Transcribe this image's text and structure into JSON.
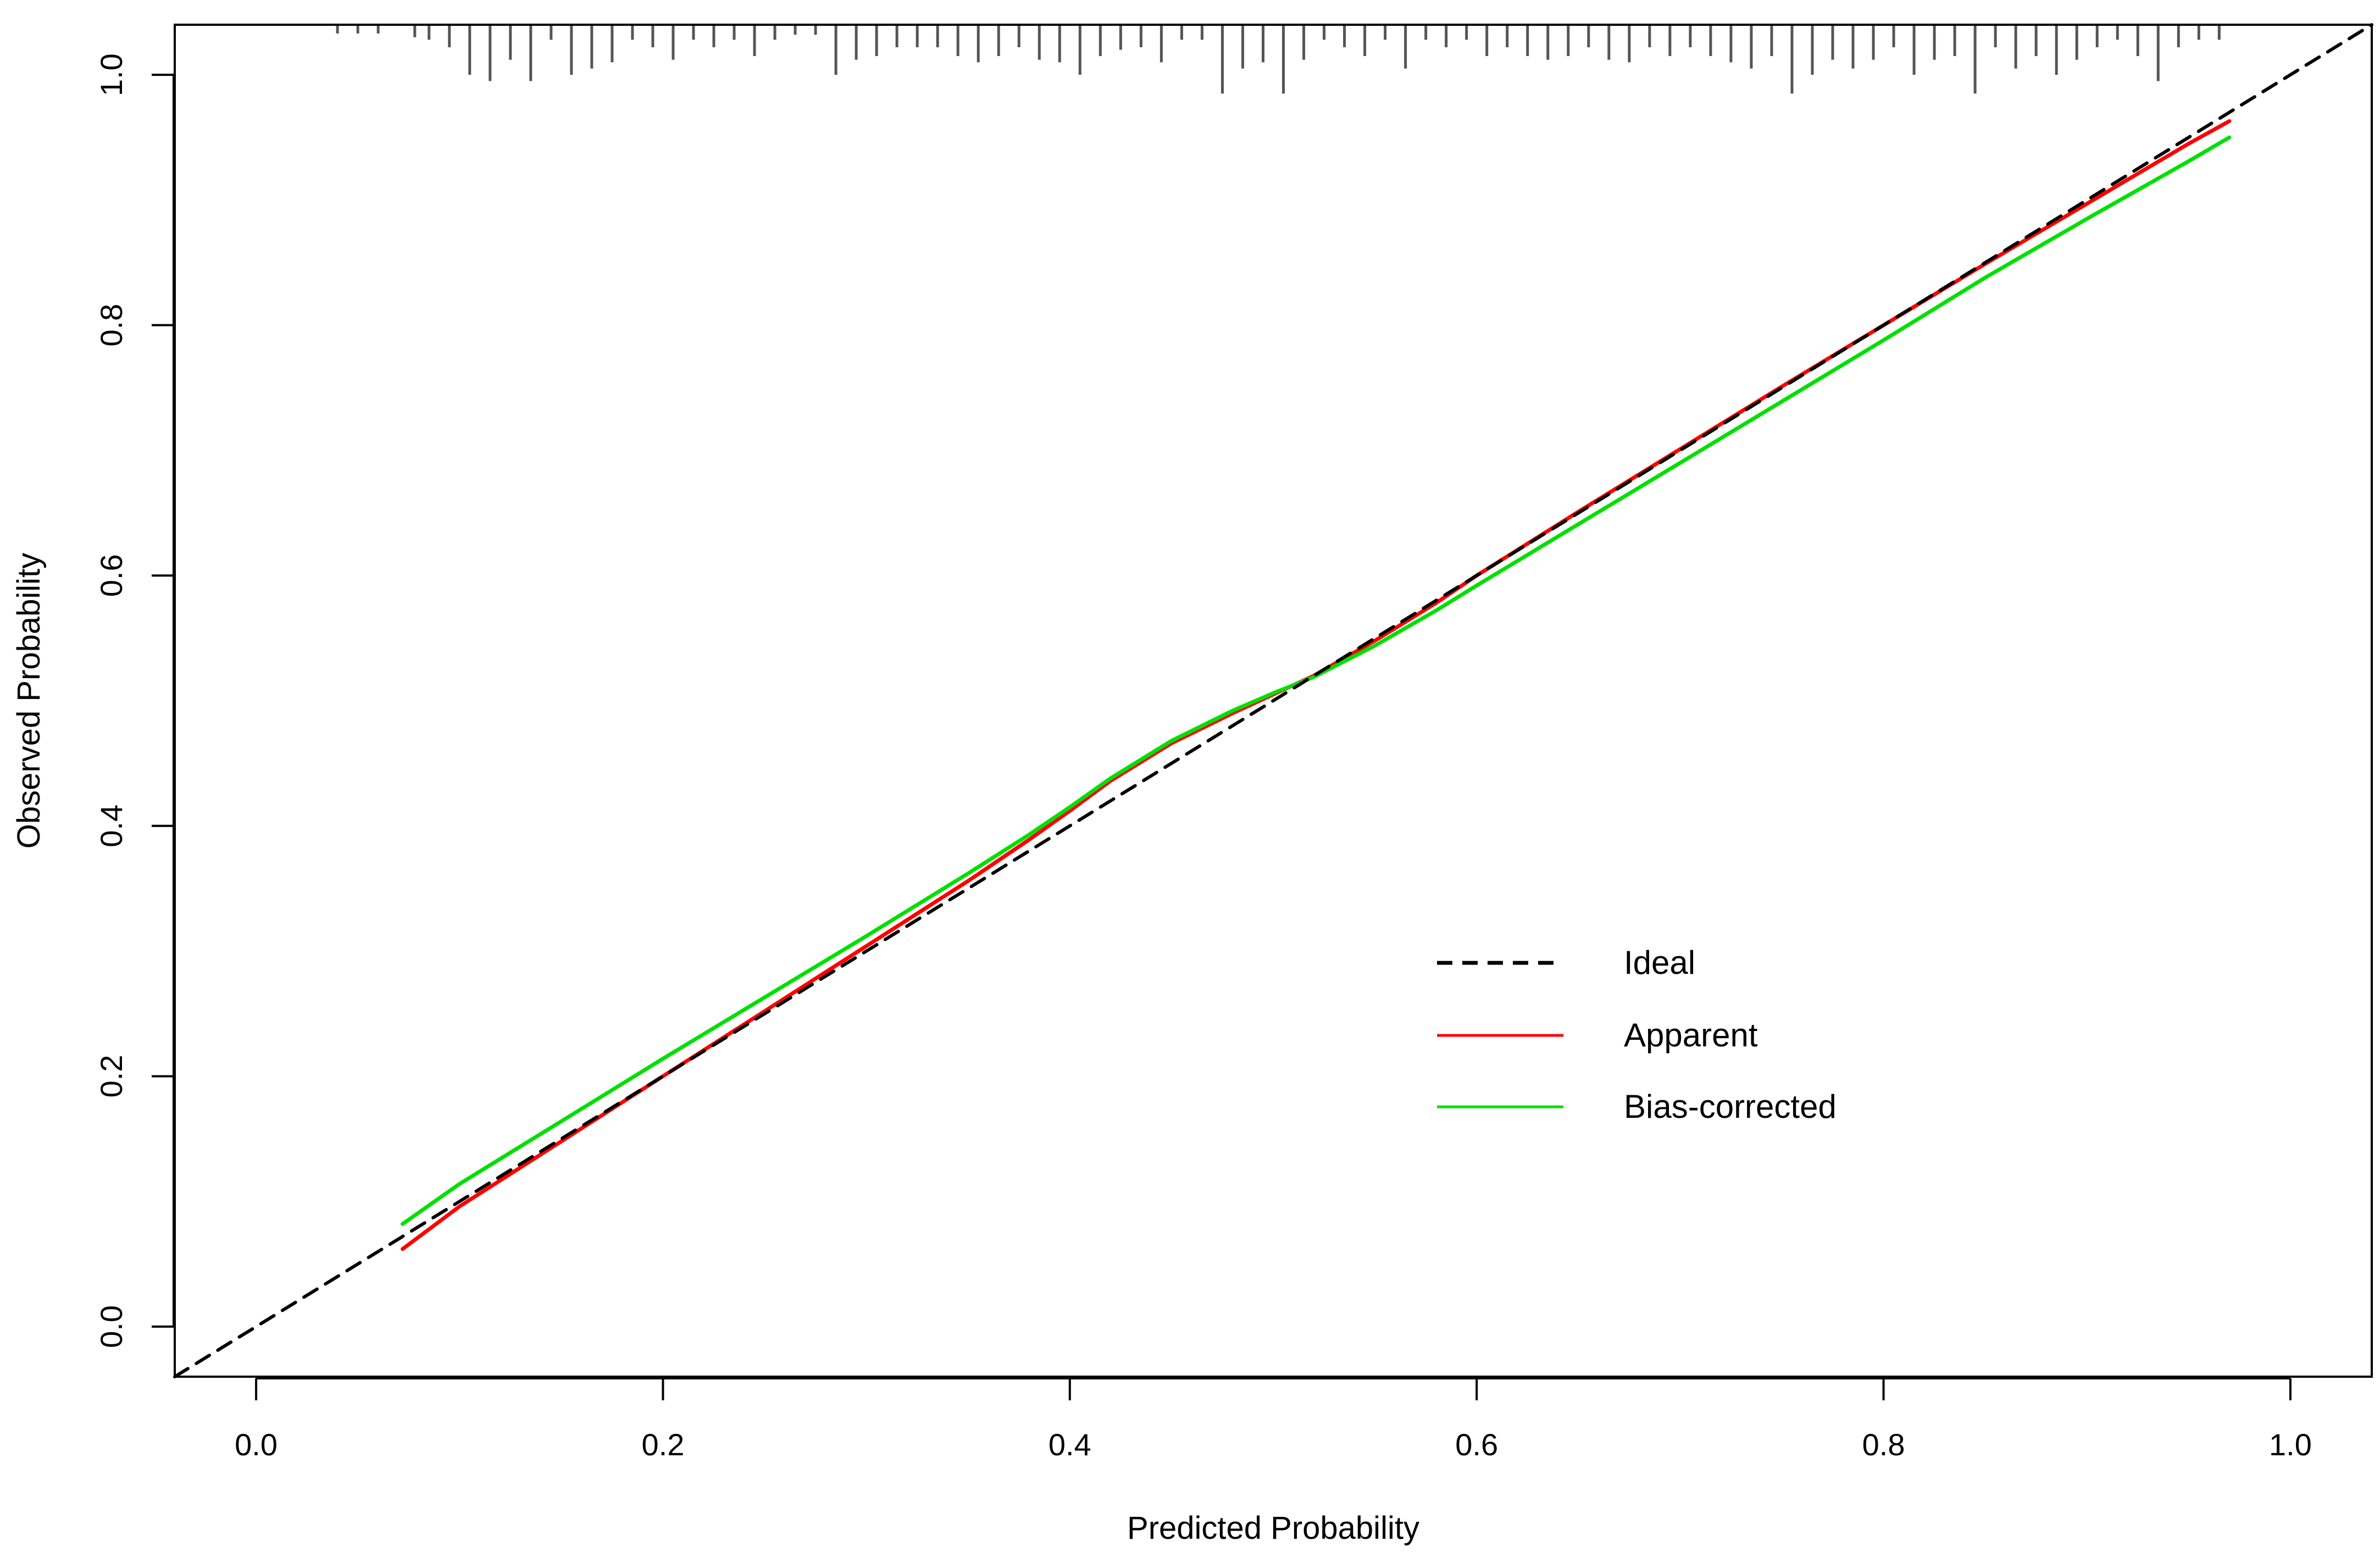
{
  "chart_data": {
    "type": "line",
    "title": "",
    "xlabel": "Predicted Probability",
    "ylabel": "Observed Probability",
    "xlim": [
      -0.04,
      1.04
    ],
    "ylim": [
      -0.04,
      1.04
    ],
    "x_ticks": [
      "0.0",
      "0.2",
      "0.4",
      "0.6",
      "0.8",
      "1.0"
    ],
    "y_ticks": [
      "0.0",
      "0.2",
      "0.4",
      "0.6",
      "0.8",
      "1.0"
    ],
    "grid": false,
    "legend_position": "center-right",
    "series": [
      {
        "name": "Ideal",
        "color": "#000000",
        "style": "dashed",
        "x": [
          -0.04,
          1.04
        ],
        "y": [
          -0.04,
          1.04
        ]
      },
      {
        "name": "Apparent",
        "color": "#ff0000",
        "style": "solid",
        "x": [
          0.072,
          0.1,
          0.15,
          0.2,
          0.25,
          0.3,
          0.35,
          0.38,
          0.4,
          0.42,
          0.45,
          0.48,
          0.5,
          0.52,
          0.55,
          0.58,
          0.6,
          0.65,
          0.7,
          0.75,
          0.8,
          0.85,
          0.9,
          0.95,
          0.97
        ],
        "y": [
          0.062,
          0.096,
          0.148,
          0.2,
          0.252,
          0.304,
          0.356,
          0.389,
          0.412,
          0.436,
          0.466,
          0.49,
          0.505,
          0.52,
          0.548,
          0.578,
          0.6,
          0.651,
          0.701,
          0.751,
          0.8,
          0.849,
          0.897,
          0.945,
          0.963
        ]
      },
      {
        "name": "Bias-corrected",
        "color": "#00e000",
        "style": "solid",
        "x": [
          0.072,
          0.1,
          0.15,
          0.2,
          0.25,
          0.3,
          0.35,
          0.38,
          0.4,
          0.42,
          0.45,
          0.48,
          0.5,
          0.52,
          0.55,
          0.58,
          0.6,
          0.65,
          0.7,
          0.75,
          0.8,
          0.85,
          0.9,
          0.95,
          0.97
        ],
        "y": [
          0.082,
          0.114,
          0.164,
          0.214,
          0.263,
          0.312,
          0.362,
          0.393,
          0.415,
          0.438,
          0.468,
          0.492,
          0.506,
          0.519,
          0.544,
          0.572,
          0.592,
          0.641,
          0.69,
          0.739,
          0.788,
          0.838,
          0.885,
          0.931,
          0.95
        ]
      }
    ],
    "rug": {
      "color": "#555555",
      "baseline": 1.04,
      "x": [
        0.04,
        0.05,
        0.06,
        0.078,
        0.085,
        0.095,
        0.105,
        0.115,
        0.125,
        0.135,
        0.145,
        0.155,
        0.165,
        0.175,
        0.185,
        0.195,
        0.205,
        0.215,
        0.225,
        0.235,
        0.245,
        0.255,
        0.265,
        0.275,
        0.285,
        0.295,
        0.305,
        0.315,
        0.325,
        0.335,
        0.345,
        0.355,
        0.365,
        0.375,
        0.385,
        0.395,
        0.405,
        0.415,
        0.425,
        0.435,
        0.445,
        0.455,
        0.465,
        0.475,
        0.485,
        0.495,
        0.505,
        0.515,
        0.525,
        0.535,
        0.545,
        0.555,
        0.565,
        0.575,
        0.585,
        0.595,
        0.605,
        0.615,
        0.625,
        0.635,
        0.645,
        0.655,
        0.665,
        0.675,
        0.685,
        0.695,
        0.705,
        0.715,
        0.725,
        0.735,
        0.745,
        0.755,
        0.765,
        0.775,
        0.785,
        0.795,
        0.805,
        0.815,
        0.825,
        0.835,
        0.845,
        0.855,
        0.865,
        0.875,
        0.885,
        0.895,
        0.905,
        0.915,
        0.925,
        0.935,
        0.945,
        0.955,
        0.965
      ],
      "frequency": [
        0.007,
        0.007,
        0.007,
        0.01,
        0.012,
        0.018,
        0.04,
        0.045,
        0.028,
        0.045,
        0.012,
        0.04,
        0.035,
        0.03,
        0.012,
        0.018,
        0.028,
        0.012,
        0.018,
        0.012,
        0.025,
        0.012,
        0.008,
        0.008,
        0.04,
        0.028,
        0.025,
        0.018,
        0.018,
        0.018,
        0.025,
        0.03,
        0.025,
        0.018,
        0.028,
        0.03,
        0.04,
        0.025,
        0.02,
        0.018,
        0.03,
        0.012,
        0.012,
        0.055,
        0.035,
        0.03,
        0.055,
        0.028,
        0.012,
        0.018,
        0.025,
        0.012,
        0.035,
        0.012,
        0.018,
        0.012,
        0.025,
        0.018,
        0.025,
        0.028,
        0.025,
        0.018,
        0.028,
        0.03,
        0.018,
        0.025,
        0.018,
        0.025,
        0.03,
        0.035,
        0.025,
        0.055,
        0.04,
        0.028,
        0.035,
        0.028,
        0.018,
        0.04,
        0.028,
        0.025,
        0.055,
        0.018,
        0.035,
        0.025,
        0.04,
        0.028,
        0.018,
        0.012,
        0.025,
        0.045,
        0.018,
        0.012,
        0.012
      ]
    }
  }
}
